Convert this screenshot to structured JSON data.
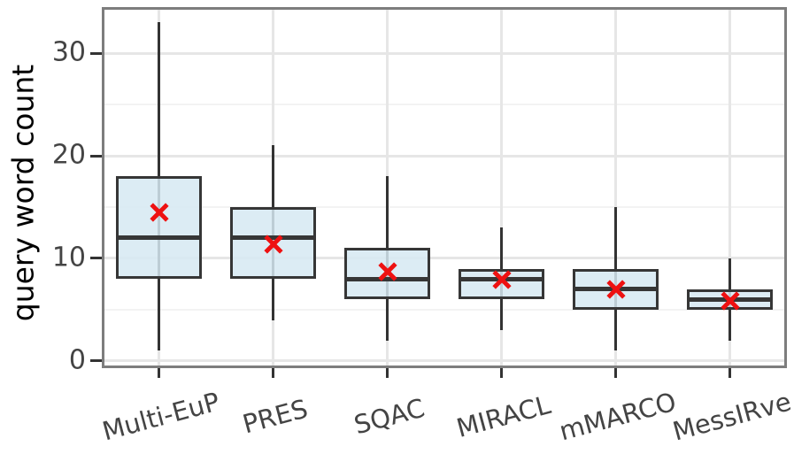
{
  "chart_data": {
    "type": "boxplot",
    "title": "",
    "ylabel": "query word count",
    "xlabel": "",
    "categories": [
      "Multi-EuP",
      "PRES",
      "SQAC",
      "MIRACL",
      "mMARCO",
      "MessIRve"
    ],
    "series": [
      {
        "name": "Multi-EuP",
        "whisker_low": 1,
        "q1": 8,
        "median": 12,
        "q3": 18,
        "whisker_high": 33,
        "mean": 14.5
      },
      {
        "name": "PRES",
        "whisker_low": 4,
        "q1": 8,
        "median": 12,
        "q3": 15,
        "whisker_high": 21,
        "mean": 11.4
      },
      {
        "name": "SQAC",
        "whisker_low": 2,
        "q1": 6,
        "median": 8,
        "q3": 11,
        "whisker_high": 18,
        "mean": 8.7
      },
      {
        "name": "MIRACL",
        "whisker_low": 3,
        "q1": 6,
        "median": 8,
        "q3": 9,
        "whisker_high": 13,
        "mean": 7.9
      },
      {
        "name": "mMARCO",
        "whisker_low": 1,
        "q1": 5,
        "median": 7,
        "q3": 9,
        "whisker_high": 15,
        "mean": 7.0
      },
      {
        "name": "MessIRve",
        "whisker_low": 2,
        "q1": 5,
        "median": 6,
        "q3": 7,
        "whisker_high": 10,
        "mean": 5.9
      }
    ],
    "yticks": [
      0,
      10,
      20,
      30
    ],
    "minor_yticks": [
      5,
      15,
      25
    ],
    "ylim": [
      -0.7,
      34.5
    ],
    "grid": "major-and-minor, horizontal major+minor, vertical major at category centers",
    "legend": "none",
    "mean_marker": "red-x",
    "x_label_rotation_deg": -15,
    "colors": {
      "box_fill": "rgba(214,233,242,0.85)",
      "box_border": "#363636",
      "median_line": "#363636",
      "whisker": "#333333",
      "mean_marker": "#ee1111",
      "grid_major": "#e6e6e6",
      "grid_minor": "#f3f3f3",
      "panel_border": "#7d7d7d",
      "tick_mark": "#333333",
      "tick_text": "#444444",
      "axis_title_text": "#000000",
      "background": "#ffffff"
    }
  }
}
